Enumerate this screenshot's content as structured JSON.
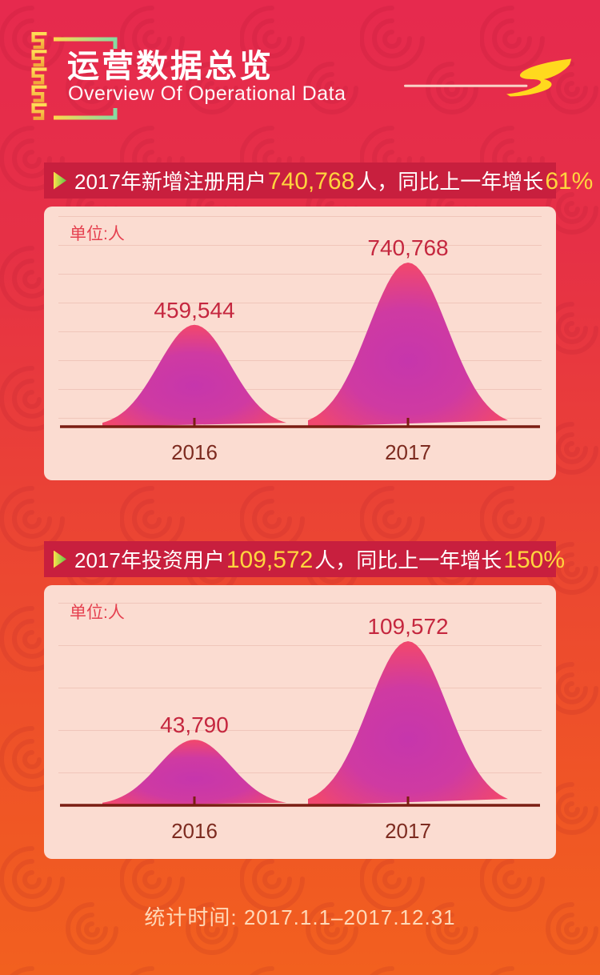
{
  "header": {
    "title": "运营数据总览",
    "subtitle": "Overview Of Operational Data",
    "logo_icon": "s-swoosh-logo",
    "ornament_icon": "greek-key-meander",
    "frame_icon": "corner-bracket-frame"
  },
  "chart_data": [
    {
      "type": "area",
      "title": "2017年新增注册用户740,768人，同比上一年增长61%",
      "headline": {
        "pre": "2017年新增注册用户",
        "num": "740,768",
        "mid": "人，同比上一年增长",
        "pct": "61%"
      },
      "unit_label": "单位:人",
      "categories": [
        "2016",
        "2017"
      ],
      "values": [
        459544,
        740768
      ],
      "value_labels": [
        "459,544",
        "740,768"
      ],
      "growth_vs_prev_year": "61%",
      "bullet_icon": "triangle-right-icon",
      "legend": "none",
      "grid": "horizontal"
    },
    {
      "type": "area",
      "title": "2017年投资用户109,572人，同比上一年增长150%",
      "headline": {
        "pre": "2017年投资用户",
        "num": "109,572",
        "mid": "人，同比上一年增长",
        "pct": "150%"
      },
      "unit_label": "单位:人",
      "categories": [
        "2016",
        "2017"
      ],
      "values": [
        43790,
        109572
      ],
      "value_labels": [
        "43,790",
        "109,572"
      ],
      "growth_vs_prev_year": "150%",
      "bullet_icon": "triangle-right-icon",
      "legend": "none",
      "grid": "horizontal"
    }
  ],
  "footer": {
    "text": "统计时间: 2017.1.1–2017.12.31"
  },
  "colors": {
    "bg_top": "#e62a4e",
    "bg_bottom": "#f2601f",
    "swirl": "#8f0c26",
    "banner_bg": "#c81f3e",
    "highlight_yellow": "#ffd53e",
    "panel_bg": "#fbdcd1",
    "gridline": "#f0c6ba",
    "unit_label": "#e5404f",
    "value_label": "#c5273f",
    "axis": "#7a1d12",
    "axis_label": "#7d2b20",
    "bell_inner": "#c636ac",
    "bell_outer": "#f0476f",
    "frame_gold": "#ffd84d",
    "frame_green": "#86dba2",
    "ornament_gold_top": "#ffdd55",
    "ornament_gold_bottom": "#f2a93a",
    "logo_yellow": "#ffd91e",
    "footer_text": "#ffd9b8"
  }
}
